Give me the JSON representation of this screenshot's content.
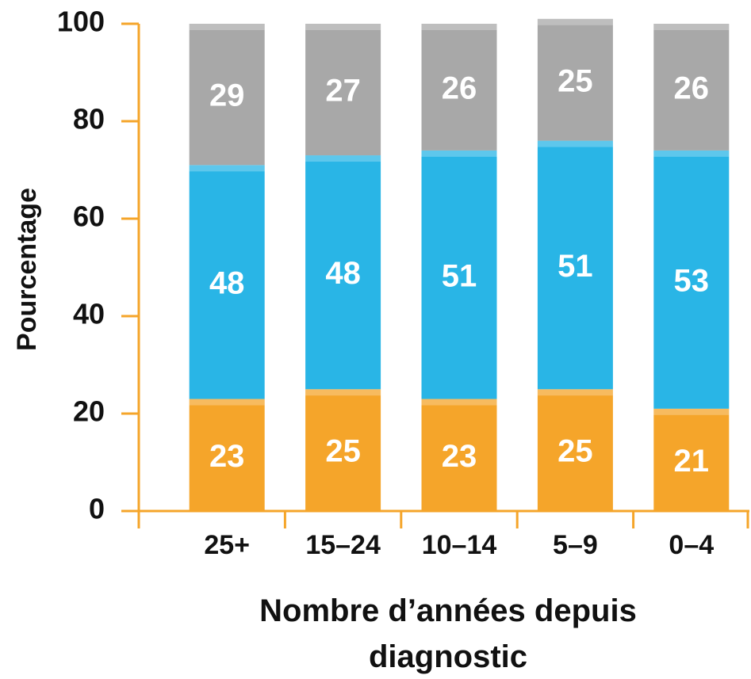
{
  "chart_data": {
    "type": "stacked_bar",
    "ylabel": "Pourcentage",
    "xlabel": "Nombre d’années depuis diagnostic",
    "categories": [
      "25+",
      "15–24",
      "10–14",
      "5–9",
      "0–4"
    ],
    "series": [
      {
        "color": "#f5a52a",
        "values": [
          23,
          25,
          23,
          25,
          21
        ]
      },
      {
        "color": "#29b5e6",
        "values": [
          48,
          48,
          51,
          51,
          53
        ]
      },
      {
        "color": "#a8a8a8",
        "values": [
          29,
          27,
          26,
          25,
          26
        ]
      }
    ],
    "ylim": [
      0,
      100
    ],
    "yticks": [
      0,
      20,
      40,
      60,
      80,
      100
    ],
    "axis_color": "#f5a52a"
  }
}
